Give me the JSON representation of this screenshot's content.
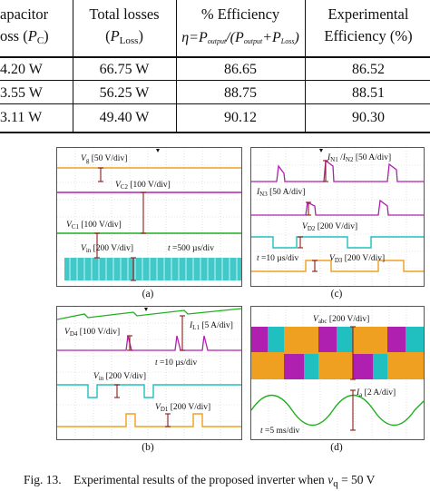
{
  "table": {
    "headers": [
      {
        "line1": "apacitor",
        "line2a": "oss (",
        "line2var": "P",
        "line2sub": "C",
        "line2b": ")"
      },
      {
        "line1": "Total losses",
        "line2a": "(",
        "line2var": "P",
        "line2sub": "Loss",
        "line2b": ")"
      },
      {
        "line1": "% Efficiency",
        "formula": "η=P_output/(P_output+P_Loss)"
      },
      {
        "line1": "Experimental",
        "line2": "Efficiency (%)"
      }
    ],
    "rows": [
      [
        "4.20 W",
        "66.75 W",
        "86.65",
        "86.52"
      ],
      [
        "3.55 W",
        "56.25 W",
        "88.75",
        "88.51"
      ],
      [
        "3.11 W",
        "49.40 W",
        "90.12",
        "90.30"
      ]
    ]
  },
  "panels": {
    "a": {
      "letter": "(a)",
      "labels": {
        "vg": {
          "var": "V",
          "sub": "g",
          "rest": " [50 V/div]"
        },
        "vc2": {
          "var": "V",
          "sub": "C2",
          "rest": " [100 V/div]"
        },
        "vc1": {
          "var": "V",
          "sub": "C1",
          "rest": " [100 V/div]"
        },
        "vin": {
          "var": "V",
          "sub": "in",
          "rest": " [200 V/div]"
        },
        "time": "t =500 µs/div"
      },
      "colors": {
        "vg": "#f0a020",
        "vc2": "#b020b0",
        "vc1": "#20b020",
        "vin": "#20c0c0"
      }
    },
    "b": {
      "letter": "(b)",
      "labels": {
        "vd4": {
          "var": "V",
          "sub": "D4",
          "rest": " [100 V/div]"
        },
        "il1": {
          "var": "I",
          "sub": "L1",
          "rest": " [5 A/div]"
        },
        "time": "t =10 µs/div",
        "vin": {
          "var": "V",
          "sub": "in",
          "rest": " [200 V/div]"
        },
        "vd1": {
          "var": "V",
          "sub": "D1",
          "rest": " [200 V/div]"
        }
      },
      "colors": {
        "il1": "#20b020",
        "vd4": "#b020b0",
        "vin": "#20c0c0",
        "vd1": "#f0a020"
      }
    },
    "c": {
      "letter": "(c)",
      "labels": {
        "in1": {
          "var": "I",
          "sub": "N1",
          "mid": " /",
          "var2": "I",
          "sub2": "N2",
          "rest": " [50 A/div]"
        },
        "in3": {
          "var": "I",
          "sub": "N3",
          "rest": " [50 A/div]"
        },
        "vd2": {
          "var": "V",
          "sub": "D2",
          "rest": " [200 V/div]"
        },
        "time": "t =10 µs/div",
        "vd3": {
          "var": "V",
          "sub": "D3",
          "rest": " [200 V/div]"
        }
      },
      "colors": {
        "in1": "#b020b0",
        "in3": "#b020b0",
        "vd2": "#20c0c0",
        "vd3": "#f0a020"
      }
    },
    "d": {
      "letter": "(d)",
      "labels": {
        "vabc": {
          "var": "V",
          "sub": "abc",
          "rest": " [200 V/div]"
        },
        "ia": {
          "var": "I",
          "sub": "a",
          "rest": " [2 A/div]"
        },
        "time": "t =5 ms/div"
      },
      "colors": {
        "vabc1": "#f0a020",
        "vabc2": "#b020b0",
        "vabc3": "#20c0c0",
        "ia": "#20b020"
      }
    }
  },
  "figure_caption": {
    "prefix": "Fig. 13.",
    "text": "Experimental results of the proposed inverter when ",
    "var": "v",
    "sub": "q",
    "tail": " = 50 V"
  }
}
